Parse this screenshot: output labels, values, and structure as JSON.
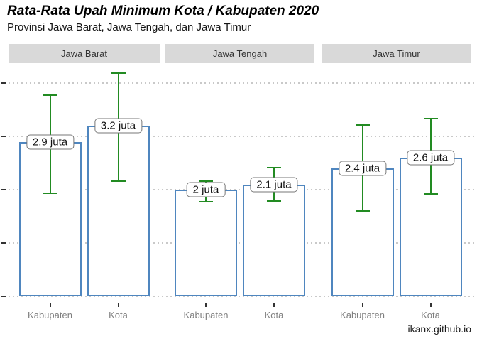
{
  "chart_data": {
    "type": "bar",
    "title": "Rata-Rata Upah Minimum Kota / Kabupaten 2020",
    "subtitle": "Provinsi Jawa Barat, Jawa Tengah, dan Jawa Timur",
    "caption": "ikanx.github.io",
    "unit": "juta rupiah",
    "categories": [
      "Kabupaten",
      "Kota"
    ],
    "ylim": [
      0,
      4.3
    ],
    "grid_interval": 1,
    "grid_values": [
      0,
      1,
      2,
      3,
      4
    ],
    "legend": "none",
    "facets": [
      {
        "label": "Jawa Barat",
        "bars": [
          {
            "category": "Kabupaten",
            "value": 2.9,
            "label": "2.9 juta",
            "error_low": 1.93,
            "error_high": 3.78
          },
          {
            "category": "Kota",
            "value": 3.2,
            "label": "3.2 juta",
            "error_low": 2.16,
            "error_high": 4.19
          }
        ]
      },
      {
        "label": "Jawa Tengah",
        "bars": [
          {
            "category": "Kabupaten",
            "value": 2.0,
            "label": "2 juta",
            "error_low": 1.77,
            "error_high": 2.16
          },
          {
            "category": "Kota",
            "value": 2.1,
            "label": "2.1 juta",
            "error_low": 1.79,
            "error_high": 2.42
          }
        ]
      },
      {
        "label": "Jawa Timur",
        "bars": [
          {
            "category": "Kabupaten",
            "value": 2.4,
            "label": "2.4 juta",
            "error_low": 1.6,
            "error_high": 3.21
          },
          {
            "category": "Kota",
            "value": 2.6,
            "label": "2.6 juta",
            "error_low": 1.92,
            "error_high": 3.33
          }
        ]
      }
    ],
    "colors": {
      "bar_stroke": "#4f86bf",
      "bar_fill": "#ffffff",
      "error_bar": "#228b22",
      "strip_bg": "#d9d9d9",
      "gridline": "#c9c9c9",
      "axis_tick": "#333333",
      "axis_text": "#7f7f7f"
    }
  }
}
